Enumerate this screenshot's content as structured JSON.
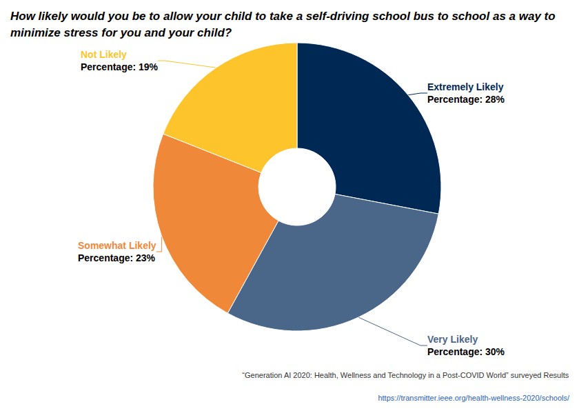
{
  "chart_data": {
    "type": "pie",
    "title": "How likely would you be to allow your child to take a self-driving school bus to school as a way to minimize stress for you and your child?",
    "categories": [
      "Extremely Likely",
      "Very Likely",
      "Somewhat Likely",
      "Not Likely"
    ],
    "values": [
      28,
      30,
      23,
      19
    ],
    "value_labels": [
      "Percentage: 28%",
      "Percentage: 30%",
      "Percentage: 23%",
      "Percentage: 19%"
    ],
    "colors": [
      "#002855",
      "#4a6688",
      "#f0883a",
      "#fec42c"
    ],
    "data_labels": true,
    "annotations": [
      "“Generation AI 2020: Health, Wellness and Technology in a Post-COVID World” surveyed Results",
      "https://transmitter.ieee.org/health-wellness-2020/schools/"
    ]
  }
}
